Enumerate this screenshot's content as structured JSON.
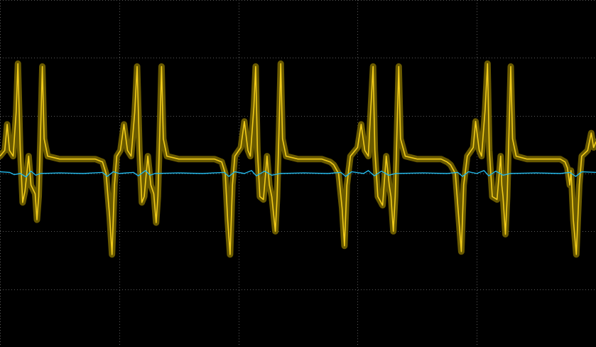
{
  "chart_data": {
    "type": "line",
    "title": "",
    "xlabel": "",
    "ylabel": "",
    "grid": true,
    "grid_divisions": {
      "x": 5,
      "y": 6
    },
    "xlim": [
      0,
      5
    ],
    "ylim": [
      -3,
      3
    ],
    "colors": {
      "background": "#000000",
      "grid": "#5a5a5a",
      "channel1": "#f2cc1a",
      "channel1_persistence": "#6a5a00",
      "channel2": "#22b8ea"
    },
    "series": [
      {
        "channel": 1,
        "values": [
          [
            0.0,
            0.3
          ],
          [
            0.04,
            0.4
          ],
          [
            0.06,
            0.85
          ],
          [
            0.08,
            0.4
          ],
          [
            0.11,
            0.3
          ],
          [
            0.135,
            1.05
          ],
          [
            0.15,
            1.9
          ],
          [
            0.17,
            0.4
          ],
          [
            0.19,
            -0.5
          ],
          [
            0.21,
            -0.3
          ],
          [
            0.24,
            0.3
          ],
          [
            0.26,
            -0.2
          ],
          [
            0.295,
            -0.35
          ],
          [
            0.31,
            -0.8
          ],
          [
            0.325,
            -0.4
          ],
          [
            0.34,
            0.7
          ],
          [
            0.355,
            1.85
          ],
          [
            0.37,
            0.6
          ],
          [
            0.4,
            0.3
          ],
          [
            0.5,
            0.25
          ],
          [
            0.6,
            0.25
          ],
          [
            0.7,
            0.25
          ],
          [
            0.8,
            0.25
          ],
          [
            0.86,
            0.2
          ],
          [
            0.89,
            0.0
          ],
          [
            0.92,
            -0.75
          ],
          [
            0.94,
            -1.4
          ],
          [
            0.96,
            -0.2
          ],
          [
            0.98,
            0.3
          ],
          [
            1.01,
            0.4
          ],
          [
            1.04,
            0.85
          ],
          [
            1.07,
            0.4
          ],
          [
            1.1,
            0.3
          ],
          [
            1.13,
            1.05
          ],
          [
            1.15,
            1.85
          ],
          [
            1.17,
            0.4
          ],
          [
            1.19,
            -0.5
          ],
          [
            1.21,
            -0.4
          ],
          [
            1.24,
            0.3
          ],
          [
            1.265,
            -0.2
          ],
          [
            1.29,
            -0.35
          ],
          [
            1.31,
            -0.85
          ],
          [
            1.325,
            -0.4
          ],
          [
            1.34,
            0.7
          ],
          [
            1.355,
            1.85
          ],
          [
            1.37,
            0.6
          ],
          [
            1.4,
            0.3
          ],
          [
            1.5,
            0.25
          ],
          [
            1.6,
            0.25
          ],
          [
            1.7,
            0.25
          ],
          [
            1.8,
            0.25
          ],
          [
            1.86,
            0.2
          ],
          [
            1.89,
            0.0
          ],
          [
            1.91,
            -0.8
          ],
          [
            1.93,
            -1.4
          ],
          [
            1.95,
            -0.2
          ],
          [
            1.97,
            0.3
          ],
          [
            2.02,
            0.45
          ],
          [
            2.05,
            0.9
          ],
          [
            2.08,
            0.4
          ],
          [
            2.1,
            0.3
          ],
          [
            2.13,
            1.15
          ],
          [
            2.145,
            1.85
          ],
          [
            2.16,
            0.4
          ],
          [
            2.18,
            -0.4
          ],
          [
            2.21,
            -0.45
          ],
          [
            2.24,
            0.3
          ],
          [
            2.26,
            -0.2
          ],
          [
            2.28,
            -0.4
          ],
          [
            2.31,
            -1.0
          ],
          [
            2.325,
            -0.4
          ],
          [
            2.34,
            0.7
          ],
          [
            2.355,
            1.9
          ],
          [
            2.37,
            0.6
          ],
          [
            2.4,
            0.3
          ],
          [
            2.5,
            0.25
          ],
          [
            2.6,
            0.25
          ],
          [
            2.7,
            0.25
          ],
          [
            2.77,
            0.2
          ],
          [
            2.8,
            0.15
          ],
          [
            2.84,
            0.0
          ],
          [
            2.87,
            -0.6
          ],
          [
            2.89,
            -1.25
          ],
          [
            2.91,
            -0.2
          ],
          [
            2.94,
            0.3
          ],
          [
            3.0,
            0.45
          ],
          [
            3.03,
            0.85
          ],
          [
            3.06,
            0.4
          ],
          [
            3.09,
            0.3
          ],
          [
            3.11,
            1.1
          ],
          [
            3.13,
            1.85
          ],
          [
            3.145,
            0.4
          ],
          [
            3.17,
            -0.4
          ],
          [
            3.21,
            -0.55
          ],
          [
            3.24,
            0.3
          ],
          [
            3.265,
            -0.2
          ],
          [
            3.28,
            -0.4
          ],
          [
            3.3,
            -1.0
          ],
          [
            3.315,
            -0.4
          ],
          [
            3.33,
            0.7
          ],
          [
            3.345,
            1.85
          ],
          [
            3.36,
            0.6
          ],
          [
            3.4,
            0.3
          ],
          [
            3.5,
            0.25
          ],
          [
            3.6,
            0.25
          ],
          [
            3.7,
            0.25
          ],
          [
            3.75,
            0.2
          ],
          [
            3.78,
            0.15
          ],
          [
            3.82,
            0.0
          ],
          [
            3.85,
            -0.8
          ],
          [
            3.87,
            -1.35
          ],
          [
            3.89,
            -0.2
          ],
          [
            3.92,
            0.3
          ],
          [
            3.97,
            0.45
          ],
          [
            3.99,
            0.9
          ],
          [
            4.02,
            0.4
          ],
          [
            4.04,
            0.3
          ],
          [
            4.07,
            1.1
          ],
          [
            4.09,
            1.9
          ],
          [
            4.105,
            0.4
          ],
          [
            4.13,
            -0.4
          ],
          [
            4.17,
            -0.45
          ],
          [
            4.2,
            0.3
          ],
          [
            4.21,
            -0.2
          ],
          [
            4.22,
            -0.4
          ],
          [
            4.24,
            -1.05
          ],
          [
            4.255,
            -0.4
          ],
          [
            4.27,
            0.7
          ],
          [
            4.285,
            1.85
          ],
          [
            4.3,
            0.6
          ],
          [
            4.33,
            0.3
          ],
          [
            4.42,
            0.25
          ],
          [
            4.52,
            0.25
          ],
          [
            4.62,
            0.25
          ],
          [
            4.7,
            0.25
          ],
          [
            4.74,
            0.2
          ],
          [
            4.76,
            0.1
          ],
          [
            4.78,
            -0.2
          ],
          [
            4.79,
            0.05
          ],
          [
            4.81,
            -0.8
          ],
          [
            4.835,
            -1.4
          ],
          [
            4.86,
            -0.2
          ],
          [
            4.88,
            0.3
          ],
          [
            4.93,
            0.4
          ],
          [
            4.96,
            0.7
          ],
          [
            4.98,
            0.45
          ],
          [
            5.0,
            0.55
          ]
        ]
      },
      {
        "channel": 2,
        "values": [
          [
            0.0,
            0.03
          ],
          [
            0.08,
            0.02
          ],
          [
            0.12,
            -0.02
          ],
          [
            0.17,
            0.0
          ],
          [
            0.22,
            -0.06
          ],
          [
            0.26,
            0.04
          ],
          [
            0.3,
            -0.03
          ],
          [
            0.34,
            0.0
          ],
          [
            0.5,
            0.01
          ],
          [
            0.7,
            0.0
          ],
          [
            0.86,
            0.02
          ],
          [
            0.9,
            -0.05
          ],
          [
            0.95,
            0.03
          ],
          [
            1.0,
            0.0
          ],
          [
            1.12,
            0.02
          ],
          [
            1.16,
            -0.04
          ],
          [
            1.22,
            0.05
          ],
          [
            1.26,
            -0.03
          ],
          [
            1.3,
            0.0
          ],
          [
            1.5,
            0.01
          ],
          [
            1.7,
            0.0
          ],
          [
            1.88,
            0.02
          ],
          [
            1.92,
            -0.05
          ],
          [
            1.97,
            0.03
          ],
          [
            2.05,
            0.0
          ],
          [
            2.11,
            0.05
          ],
          [
            2.15,
            -0.04
          ],
          [
            2.22,
            0.04
          ],
          [
            2.28,
            -0.03
          ],
          [
            2.35,
            0.0
          ],
          [
            2.55,
            0.01
          ],
          [
            2.75,
            0.0
          ],
          [
            2.86,
            0.02
          ],
          [
            2.9,
            -0.05
          ],
          [
            2.95,
            0.03
          ],
          [
            3.05,
            0.0
          ],
          [
            3.09,
            0.05
          ],
          [
            3.14,
            -0.04
          ],
          [
            3.2,
            0.04
          ],
          [
            3.26,
            -0.03
          ],
          [
            3.32,
            0.0
          ],
          [
            3.55,
            0.01
          ],
          [
            3.75,
            0.0
          ],
          [
            3.84,
            0.02
          ],
          [
            3.88,
            -0.05
          ],
          [
            3.93,
            0.03
          ],
          [
            4.0,
            0.0
          ],
          [
            4.06,
            0.05
          ],
          [
            4.1,
            -0.04
          ],
          [
            4.16,
            0.04
          ],
          [
            4.22,
            -0.03
          ],
          [
            4.28,
            0.0
          ],
          [
            4.5,
            0.01
          ],
          [
            4.7,
            0.0
          ],
          [
            4.78,
            0.02
          ],
          [
            4.83,
            -0.05
          ],
          [
            4.88,
            0.03
          ],
          [
            5.0,
            0.02
          ]
        ]
      }
    ]
  }
}
